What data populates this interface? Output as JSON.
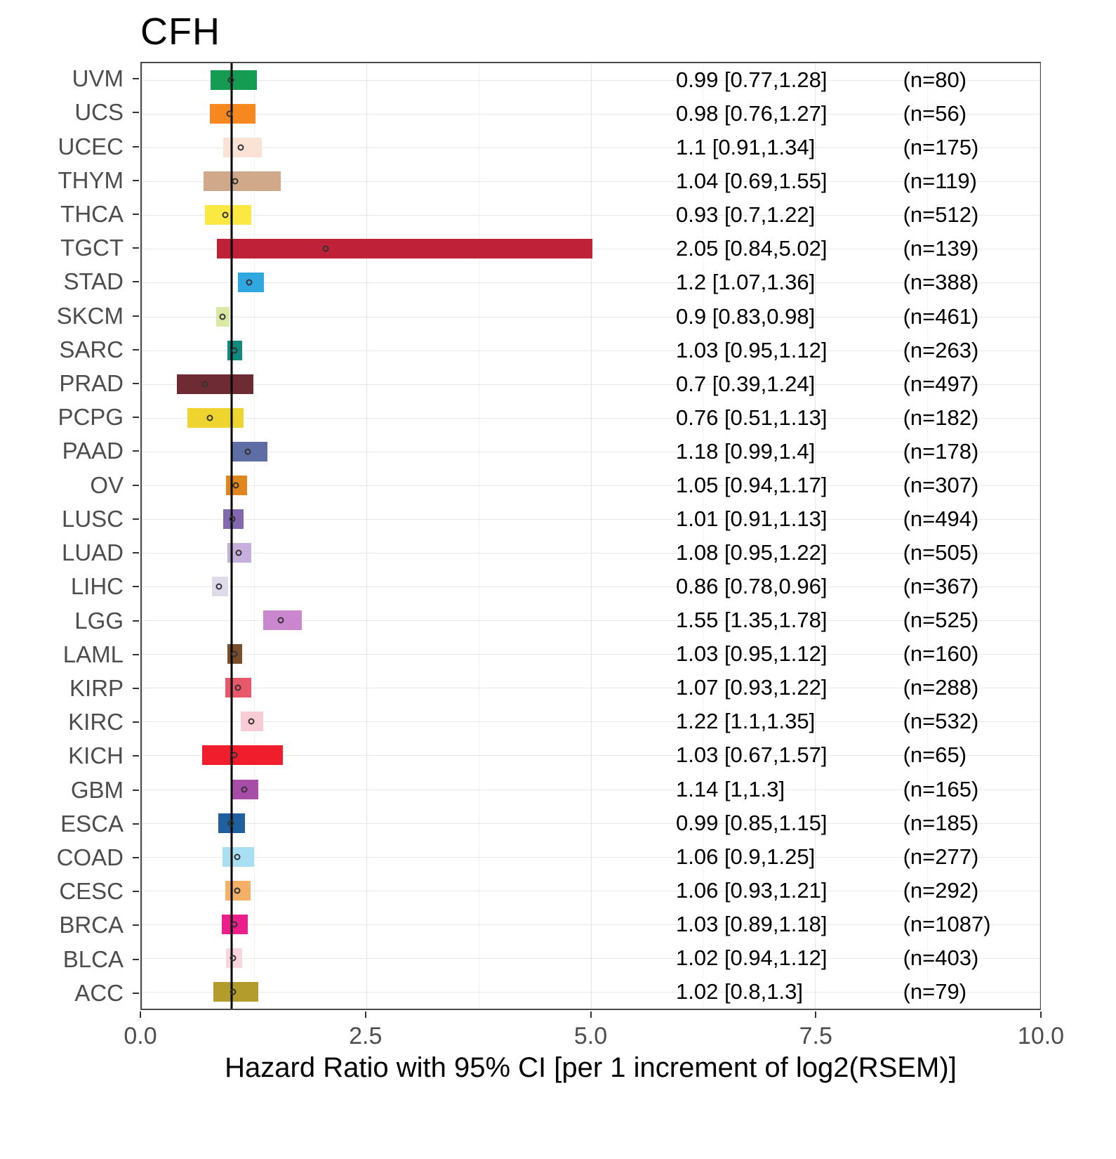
{
  "title": "CFH",
  "chart_data": {
    "type": "bar",
    "subtype": "forest-plot",
    "title": "CFH",
    "xlabel": "Hazard Ratio with 95% CI [per 1 increment of log2(RSEM)]",
    "ylabel": "",
    "xlim": [
      0,
      10
    ],
    "xticks": [
      0,
      2.5,
      5,
      7.5,
      10
    ],
    "xtick_labels": [
      "0.0",
      "2.5",
      "5.0",
      "7.5",
      "10.0"
    ],
    "minor_xticks": [
      1.25,
      3.75,
      6.25,
      8.75
    ],
    "ref_line": 1,
    "grid": "on",
    "hr_text_x": 59.5,
    "n_text_x": 84.8,
    "rows": [
      {
        "label": "UVM",
        "hr": 0.99,
        "lo": 0.77,
        "hi": 1.28,
        "n": 80,
        "hr_text": "0.99 [0.77,1.28]",
        "n_text": "(n=80)",
        "color": "#169C52"
      },
      {
        "label": "UCS",
        "hr": 0.98,
        "lo": 0.76,
        "hi": 1.27,
        "n": 56,
        "hr_text": "0.98 [0.76,1.27]",
        "n_text": "(n=56)",
        "color": "#F6881F"
      },
      {
        "label": "UCEC",
        "hr": 1.1,
        "lo": 0.91,
        "hi": 1.34,
        "n": 175,
        "hr_text": "1.1 [0.91,1.34]",
        "n_text": "(n=175)",
        "color": "#FAE3D5"
      },
      {
        "label": "THYM",
        "hr": 1.04,
        "lo": 0.69,
        "hi": 1.55,
        "n": 119,
        "hr_text": "1.04 [0.69,1.55]",
        "n_text": "(n=119)",
        "color": "#CFA98A"
      },
      {
        "label": "THCA",
        "hr": 0.93,
        "lo": 0.7,
        "hi": 1.22,
        "n": 512,
        "hr_text": "0.93 [0.7,1.22]",
        "n_text": "(n=512)",
        "color": "#FBE842"
      },
      {
        "label": "TGCT",
        "hr": 2.05,
        "lo": 0.84,
        "hi": 5.02,
        "n": 139,
        "hr_text": "2.05 [0.84,5.02]",
        "n_text": "(n=139)",
        "color": "#BE2138"
      },
      {
        "label": "STAD",
        "hr": 1.2,
        "lo": 1.07,
        "hi": 1.36,
        "n": 388,
        "hr_text": "1.2 [1.07,1.36]",
        "n_text": "(n=388)",
        "color": "#2FA8E0"
      },
      {
        "label": "SKCM",
        "hr": 0.9,
        "lo": 0.83,
        "hi": 0.98,
        "n": 461,
        "hr_text": "0.9 [0.83,0.98]",
        "n_text": "(n=461)",
        "color": "#D9E8A2"
      },
      {
        "label": "SARC",
        "hr": 1.03,
        "lo": 0.95,
        "hi": 1.12,
        "n": 263,
        "hr_text": "1.03 [0.95,1.12]",
        "n_text": "(n=263)",
        "color": "#108A7E"
      },
      {
        "label": "PRAD",
        "hr": 0.7,
        "lo": 0.39,
        "hi": 1.24,
        "n": 497,
        "hr_text": "0.7 [0.39,1.24]",
        "n_text": "(n=497)",
        "color": "#6E2B33"
      },
      {
        "label": "PCPG",
        "hr": 0.76,
        "lo": 0.51,
        "hi": 1.13,
        "n": 182,
        "hr_text": "0.76 [0.51,1.13]",
        "n_text": "(n=182)",
        "color": "#EFD32F"
      },
      {
        "label": "PAAD",
        "hr": 1.18,
        "lo": 0.99,
        "hi": 1.4,
        "n": 178,
        "hr_text": "1.18 [0.99,1.4]",
        "n_text": "(n=178)",
        "color": "#5E6DA4"
      },
      {
        "label": "OV",
        "hr": 1.05,
        "lo": 0.94,
        "hi": 1.17,
        "n": 307,
        "hr_text": "1.05 [0.94,1.17]",
        "n_text": "(n=307)",
        "color": "#E1861F"
      },
      {
        "label": "LUSC",
        "hr": 1.01,
        "lo": 0.91,
        "hi": 1.13,
        "n": 494,
        "hr_text": "1.01 [0.91,1.13]",
        "n_text": "(n=494)",
        "color": "#8268AC"
      },
      {
        "label": "LUAD",
        "hr": 1.08,
        "lo": 0.95,
        "hi": 1.22,
        "n": 505,
        "hr_text": "1.08 [0.95,1.22]",
        "n_text": "(n=505)",
        "color": "#C7AFDC"
      },
      {
        "label": "LIHC",
        "hr": 0.86,
        "lo": 0.78,
        "hi": 0.96,
        "n": 367,
        "hr_text": "0.86 [0.78,0.96]",
        "n_text": "(n=367)",
        "color": "#DFDBEB"
      },
      {
        "label": "LGG",
        "hr": 1.55,
        "lo": 1.35,
        "hi": 1.78,
        "n": 525,
        "hr_text": "1.55 [1.35,1.78]",
        "n_text": "(n=525)",
        "color": "#CB87CD"
      },
      {
        "label": "LAML",
        "hr": 1.03,
        "lo": 0.95,
        "hi": 1.12,
        "n": 160,
        "hr_text": "1.03 [0.95,1.12]",
        "n_text": "(n=160)",
        "color": "#7A4E2B"
      },
      {
        "label": "KIRP",
        "hr": 1.07,
        "lo": 0.93,
        "hi": 1.22,
        "n": 288,
        "hr_text": "1.07 [0.93,1.22]",
        "n_text": "(n=288)",
        "color": "#E8586A"
      },
      {
        "label": "KIRC",
        "hr": 1.22,
        "lo": 1.1,
        "hi": 1.35,
        "n": 532,
        "hr_text": "1.22 [1.1,1.35]",
        "n_text": "(n=532)",
        "color": "#F8CBD5"
      },
      {
        "label": "KICH",
        "hr": 1.03,
        "lo": 0.67,
        "hi": 1.57,
        "n": 65,
        "hr_text": "1.03 [0.67,1.57]",
        "n_text": "(n=65)",
        "color": "#F01E2C"
      },
      {
        "label": "GBM",
        "hr": 1.14,
        "lo": 1.0,
        "hi": 1.3,
        "n": 165,
        "hr_text": "1.14 [1,1.3]",
        "n_text": "(n=165)",
        "color": "#A74DA8"
      },
      {
        "label": "ESCA",
        "hr": 0.99,
        "lo": 0.85,
        "hi": 1.15,
        "n": 185,
        "hr_text": "0.99 [0.85,1.15]",
        "n_text": "(n=185)",
        "color": "#1F609F"
      },
      {
        "label": "COAD",
        "hr": 1.06,
        "lo": 0.9,
        "hi": 1.25,
        "n": 277,
        "hr_text": "1.06 [0.9,1.25]",
        "n_text": "(n=277)",
        "color": "#A9DFF2"
      },
      {
        "label": "CESC",
        "hr": 1.06,
        "lo": 0.93,
        "hi": 1.21,
        "n": 292,
        "hr_text": "1.06 [0.93,1.21]",
        "n_text": "(n=292)",
        "color": "#F4B067"
      },
      {
        "label": "BRCA",
        "hr": 1.03,
        "lo": 0.89,
        "hi": 1.18,
        "n": 1087,
        "hr_text": "1.03 [0.89,1.18]",
        "n_text": "(n=1087)",
        "color": "#EB1E8C"
      },
      {
        "label": "BLCA",
        "hr": 1.02,
        "lo": 0.94,
        "hi": 1.12,
        "n": 403,
        "hr_text": "1.02 [0.94,1.12]",
        "n_text": "(n=403)",
        "color": "#F9D6DF"
      },
      {
        "label": "ACC",
        "hr": 1.02,
        "lo": 0.8,
        "hi": 1.3,
        "n": 79,
        "hr_text": "1.02 [0.8,1.3]",
        "n_text": "(n=79)",
        "color": "#B49C2C"
      }
    ],
    "colors": {
      "reference_line": "#000000",
      "panel_border": "#4a4a4a",
      "gridline_major": "#e3e3e3",
      "axis_text": "#4d4d4d",
      "point_outline": "#333333"
    }
  }
}
